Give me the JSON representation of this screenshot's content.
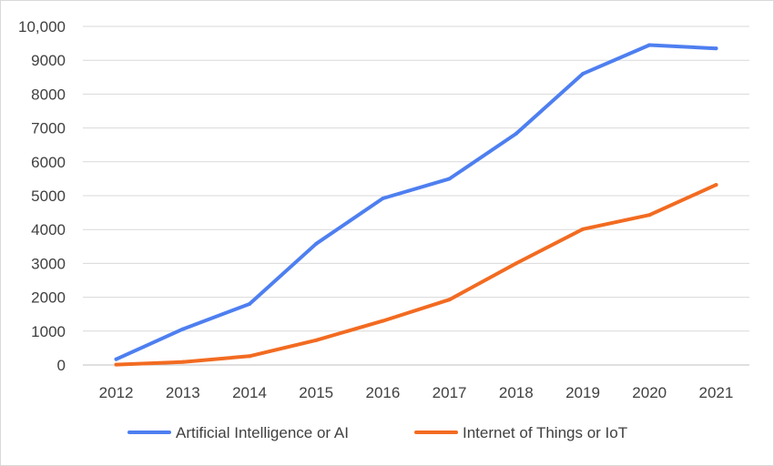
{
  "chart_data": {
    "type": "line",
    "title": "",
    "xlabel": "",
    "ylabel": "",
    "categories": [
      "2012",
      "2013",
      "2014",
      "2015",
      "2016",
      "2017",
      "2018",
      "2019",
      "2020",
      "2021"
    ],
    "y_ticks": [
      "0",
      "1000",
      "2000",
      "3000",
      "4000",
      "5000",
      "6000",
      "7000",
      "8000",
      "9000",
      "10,000"
    ],
    "ylim": [
      0,
      10000
    ],
    "grid": true,
    "legend_position": "bottom",
    "series": [
      {
        "name": "Artificial Intelligence or AI",
        "color": "#4e7ff0",
        "values": [
          170,
          1060,
          1800,
          3580,
          4920,
          5500,
          6830,
          8600,
          9450,
          9350
        ]
      },
      {
        "name": "Internet of Things or IoT",
        "color": "#f26b21",
        "values": [
          10,
          90,
          260,
          730,
          1300,
          1930,
          3000,
          4010,
          4430,
          5320
        ]
      }
    ]
  }
}
